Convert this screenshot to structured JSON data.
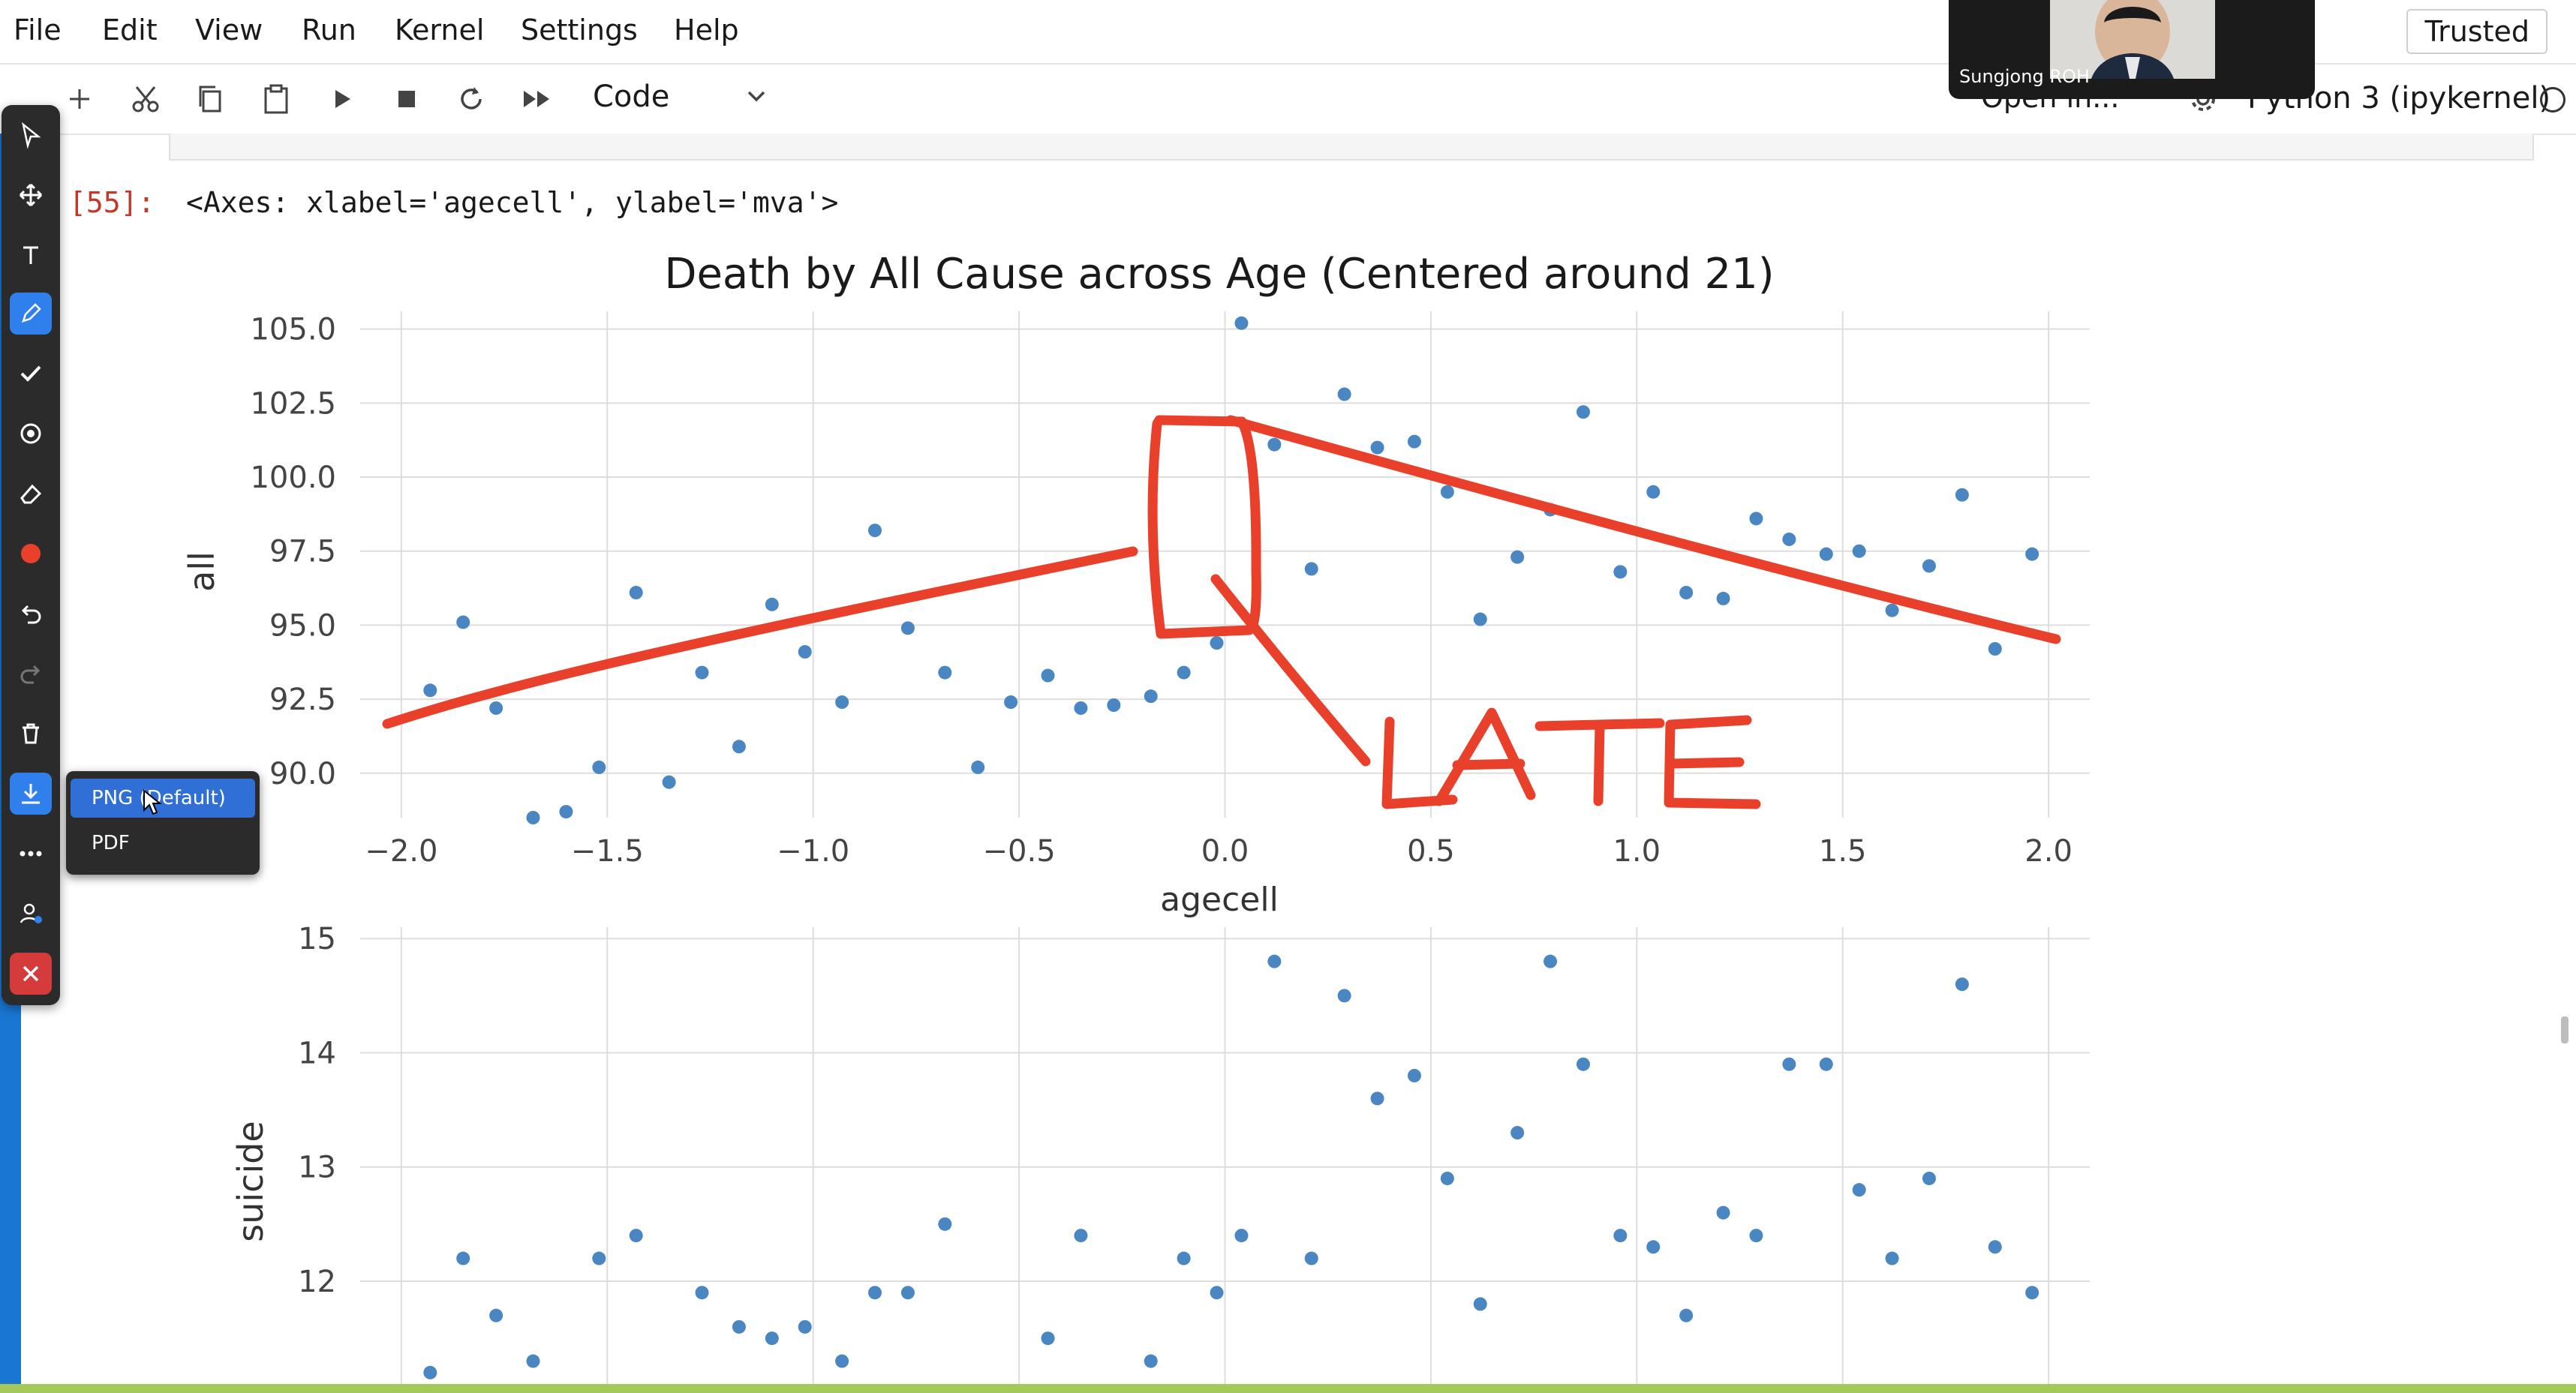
{
  "menu": {
    "items": [
      "File",
      "Edit",
      "View",
      "Run",
      "Kernel",
      "Settings",
      "Help"
    ],
    "trusted": "Trusted"
  },
  "toolbar": {
    "cell_type": "Code",
    "open_in": "Open in...",
    "kernel": "Python 3 (ipykernel)"
  },
  "video": {
    "participant": "Sungjong ROH"
  },
  "cell": {
    "prompt": "[55]:",
    "output_text": "<Axes: xlabel='agecell', ylabel='mva'>"
  },
  "export_menu": {
    "options": [
      "PNG (Default)",
      "PDF"
    ]
  },
  "annotation": {
    "text": "LATE",
    "color": "#e8402a"
  },
  "colors": {
    "point": "#3f7fbf",
    "accent": "#1976d2",
    "ink": "#e8402a"
  },
  "chart_data": [
    {
      "type": "scatter",
      "title": "Death by All Cause across Age (Centered around 21)",
      "xlabel": "agecell",
      "ylabel": "all",
      "xlim": [
        -2.1,
        2.1
      ],
      "ylim": [
        88.5,
        105.6
      ],
      "xticks": [
        "−2.0",
        "−1.5",
        "−1.0",
        "−0.5",
        "0.0",
        "0.5",
        "1.0",
        "1.5",
        "2.0"
      ],
      "yticks": [
        "90.0",
        "92.5",
        "95.0",
        "97.5",
        "100.0",
        "102.5",
        "105.0"
      ],
      "grid": true,
      "x": [
        -1.93,
        -1.85,
        -1.77,
        -1.68,
        -1.6,
        -1.52,
        -1.43,
        -1.35,
        -1.27,
        -1.18,
        -1.1,
        -1.02,
        -0.93,
        -0.85,
        -0.77,
        -0.68,
        -0.6,
        -0.52,
        -0.43,
        -0.35,
        -0.27,
        -0.18,
        -0.1,
        -0.02,
        0.04,
        0.12,
        0.21,
        0.29,
        0.37,
        0.46,
        0.54,
        0.62,
        0.71,
        0.79,
        0.87,
        0.96,
        1.04,
        1.12,
        1.21,
        1.29,
        1.37,
        1.46,
        1.54,
        1.62,
        1.71,
        1.79,
        1.87,
        1.96
      ],
      "y": [
        92.8,
        95.1,
        92.2,
        88.5,
        88.7,
        90.2,
        96.1,
        89.7,
        93.4,
        90.9,
        95.7,
        94.1,
        92.4,
        98.2,
        94.9,
        93.4,
        90.2,
        92.4,
        93.3,
        92.2,
        92.3,
        92.6,
        93.4,
        94.4,
        105.2,
        101.1,
        96.9,
        102.8,
        101.0,
        101.2,
        99.5,
        95.2,
        97.3,
        98.9,
        102.2,
        96.8,
        99.5,
        96.1,
        95.9,
        98.6,
        97.9,
        97.4,
        97.5,
        95.5,
        97.0,
        99.4,
        94.2,
        97.4
      ]
    },
    {
      "type": "scatter",
      "title": "",
      "xlabel": "",
      "ylabel": "suicide",
      "xlim": [
        -2.1,
        2.1
      ],
      "ylim": [
        11.1,
        15.1
      ],
      "yticks": [
        "12",
        "13",
        "14",
        "15"
      ],
      "grid": true,
      "x": [
        -1.93,
        -1.85,
        -1.77,
        -1.68,
        -1.52,
        -1.43,
        -1.27,
        -1.18,
        -1.1,
        -1.02,
        -0.93,
        -0.85,
        -0.77,
        -0.68,
        -0.6,
        -0.43,
        -0.35,
        -0.18,
        -0.1,
        -0.02,
        0.04,
        0.12,
        0.21,
        0.29,
        0.37,
        0.46,
        0.54,
        0.62,
        0.71,
        0.79,
        0.87,
        0.96,
        1.04,
        1.12,
        1.21,
        1.29,
        1.37,
        1.46,
        1.54,
        1.62,
        1.71,
        1.79,
        1.87,
        1.96
      ],
      "y": [
        11.2,
        12.2,
        11.7,
        11.3,
        12.2,
        12.4,
        11.9,
        11.6,
        11.5,
        11.6,
        11.3,
        11.9,
        11.9,
        12.5,
        11.1,
        11.5,
        12.4,
        11.3,
        12.2,
        11.9,
        12.4,
        14.8,
        12.2,
        14.5,
        13.6,
        13.8,
        12.9,
        11.8,
        13.3,
        14.8,
        13.9,
        12.4,
        12.3,
        11.7,
        12.6,
        12.4,
        13.9,
        13.9,
        12.8,
        12.2,
        12.9,
        14.6,
        12.3,
        11.9
      ]
    }
  ]
}
